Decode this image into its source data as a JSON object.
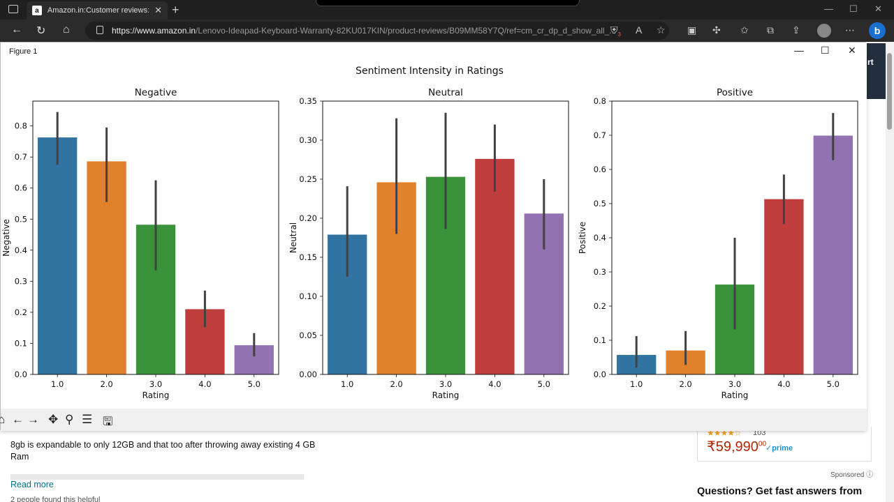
{
  "browser": {
    "tab_title": "Amazon.in:Customer reviews: Lenovo",
    "tab_favicon": "a",
    "url_host": "https://www.amazon.in",
    "url_path": "/Lenovo-Ideapad-Keyboard-Warranty-82KU017KIN/product-reviews/B09MM58Y7Q/ref=cm_cr_dp_d_show_all_...",
    "extension_badge": "3"
  },
  "figure_window": {
    "title": "Figure 1",
    "minimize": "—",
    "maximize": "☐",
    "close": "✕"
  },
  "chart_data": {
    "type": "bar",
    "title": "Sentiment Intensity in Ratings",
    "colors": [
      "#3274a1",
      "#e1812c",
      "#3a923a",
      "#c03d3e",
      "#9372b2"
    ],
    "subplots": [
      {
        "title": "Negative",
        "xlabel": "Rating",
        "ylabel": "Negative",
        "categories": [
          "1.0",
          "2.0",
          "3.0",
          "4.0",
          "5.0"
        ],
        "values": [
          0.763,
          0.686,
          0.482,
          0.21,
          0.094
        ],
        "error_low": [
          0.675,
          0.555,
          0.335,
          0.152,
          0.058
        ],
        "error_high": [
          0.845,
          0.795,
          0.625,
          0.27,
          0.133
        ],
        "ylim": [
          0,
          0.88
        ],
        "yticks": [
          0.0,
          0.1,
          0.2,
          0.3,
          0.4,
          0.5,
          0.6,
          0.7,
          0.8
        ],
        "ytick_labels": [
          "0.0",
          "0.1",
          "0.2",
          "0.3",
          "0.4",
          "0.5",
          "0.6",
          "0.7",
          "0.8"
        ]
      },
      {
        "title": "Neutral",
        "xlabel": "Rating",
        "ylabel": "Neutral",
        "categories": [
          "1.0",
          "2.0",
          "3.0",
          "4.0",
          "5.0"
        ],
        "values": [
          0.179,
          0.246,
          0.253,
          0.276,
          0.206
        ],
        "error_low": [
          0.125,
          0.18,
          0.186,
          0.234,
          0.16
        ],
        "error_high": [
          0.241,
          0.328,
          0.335,
          0.32,
          0.25
        ],
        "ylim": [
          0,
          0.35
        ],
        "yticks": [
          0.0,
          0.05,
          0.1,
          0.15,
          0.2,
          0.25,
          0.3,
          0.35
        ],
        "ytick_labels": [
          "0.00",
          "0.05",
          "0.10",
          "0.15",
          "0.20",
          "0.25",
          "0.30",
          "0.35"
        ]
      },
      {
        "title": "Positive",
        "xlabel": "Rating",
        "ylabel": "Positive",
        "categories": [
          "1.0",
          "2.0",
          "3.0",
          "4.0",
          "5.0"
        ],
        "values": [
          0.057,
          0.07,
          0.263,
          0.513,
          0.699
        ],
        "error_low": [
          0.02,
          0.028,
          0.132,
          0.44,
          0.627
        ],
        "error_high": [
          0.112,
          0.127,
          0.4,
          0.585,
          0.765
        ],
        "ylim": [
          0,
          0.8
        ],
        "yticks": [
          0.0,
          0.1,
          0.2,
          0.3,
          0.4,
          0.5,
          0.6,
          0.7,
          0.8
        ],
        "ytick_labels": [
          "0.0",
          "0.1",
          "0.2",
          "0.3",
          "0.4",
          "0.5",
          "0.6",
          "0.7",
          "0.8"
        ]
      }
    ]
  },
  "page": {
    "review_text": "8gb is expandable to only 12GB and that too after throwing away existing 4 GB Ram",
    "read_more": "Read more",
    "helpful": "2 people found this helpful",
    "stars": "★★★★☆",
    "rating_count": "103",
    "price_symbol": "₹",
    "price": "59,990",
    "price_fraction": "00",
    "prime": "✓prime",
    "sponsored": "Sponsored ⓘ",
    "questions": "Questions? Get fast answers from",
    "side_banner": "rt"
  }
}
